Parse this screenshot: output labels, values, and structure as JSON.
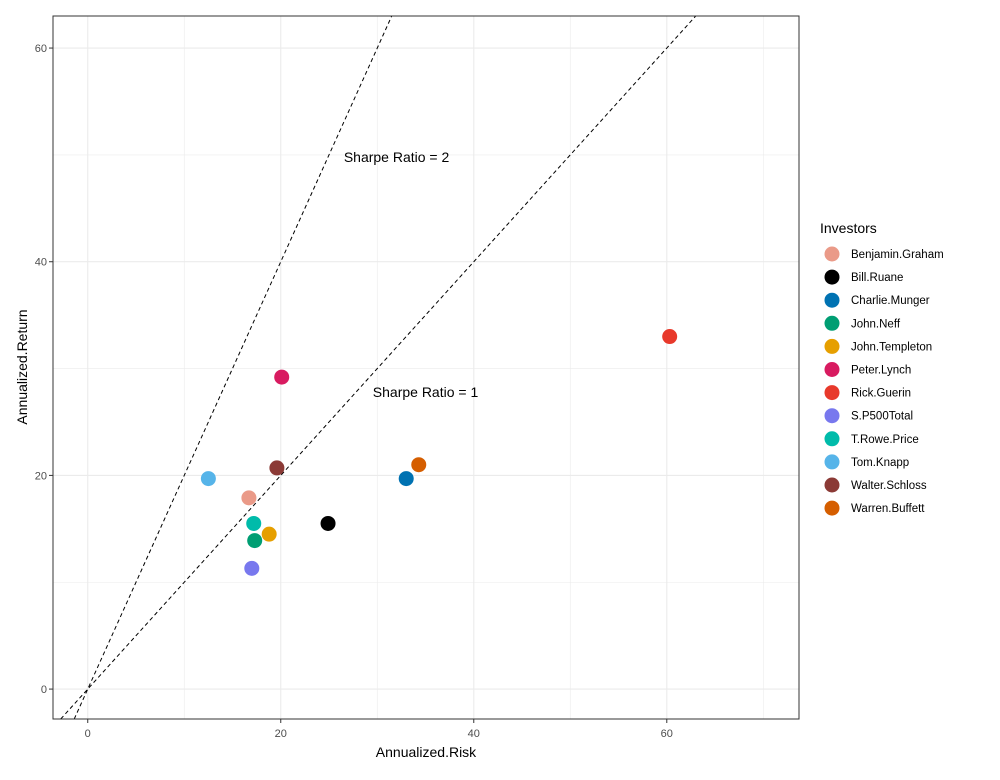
{
  "chart_data": {
    "type": "scatter",
    "title": "",
    "xlabel": "Annualized.Risk",
    "ylabel": "Annualized.Return",
    "xlim": [
      -3.6,
      73.7
    ],
    "ylim": [
      -2.8,
      63.0
    ],
    "xticks": [
      0,
      20,
      40,
      60
    ],
    "yticks": [
      0,
      20,
      40,
      60
    ],
    "xtick_labels": [
      "0",
      "20",
      "40",
      "60"
    ],
    "ytick_labels": [
      "0",
      "20",
      "40",
      "60"
    ],
    "grid": true,
    "legend": {
      "title": "Investors",
      "position": "right"
    },
    "series": [
      {
        "name": "Benjamin.Graham",
        "color": "#EA9A88",
        "x": 16.7,
        "y": 17.9
      },
      {
        "name": "Bill.Ruane",
        "color": "#000000",
        "x": 24.9,
        "y": 15.5
      },
      {
        "name": "Charlie.Munger",
        "color": "#0072B2",
        "x": 33.0,
        "y": 19.7
      },
      {
        "name": "John.Neff",
        "color": "#009E73",
        "x": 17.3,
        "y": 13.9
      },
      {
        "name": "John.Templeton",
        "color": "#E69F00",
        "x": 18.8,
        "y": 14.5
      },
      {
        "name": "Peter.Lynch",
        "color": "#D81B60",
        "x": 20.1,
        "y": 29.2
      },
      {
        "name": "Rick.Guerin",
        "color": "#E8392B",
        "x": 60.3,
        "y": 33.0
      },
      {
        "name": "S.P500Total",
        "color": "#7878EE",
        "x": 17.0,
        "y": 11.3
      },
      {
        "name": "T.Rowe.Price",
        "color": "#00BBAA",
        "x": 17.2,
        "y": 15.5
      },
      {
        "name": "Tom.Knapp",
        "color": "#56B4E9",
        "x": 12.5,
        "y": 19.7
      },
      {
        "name": "Walter.Schloss",
        "color": "#8B3A36",
        "x": 19.6,
        "y": 20.7
      },
      {
        "name": "Warren.Buffett",
        "color": "#D55E00",
        "x": 34.3,
        "y": 21.0
      }
    ],
    "reference_lines": [
      {
        "slope": 2,
        "intercept": 0,
        "label": "Sharpe Ratio = 2",
        "label_x": 32,
        "label_y": 49.8
      },
      {
        "slope": 1,
        "intercept": 0,
        "label": "Sharpe Ratio = 1",
        "label_x": 35,
        "label_y": 27.8
      }
    ]
  }
}
